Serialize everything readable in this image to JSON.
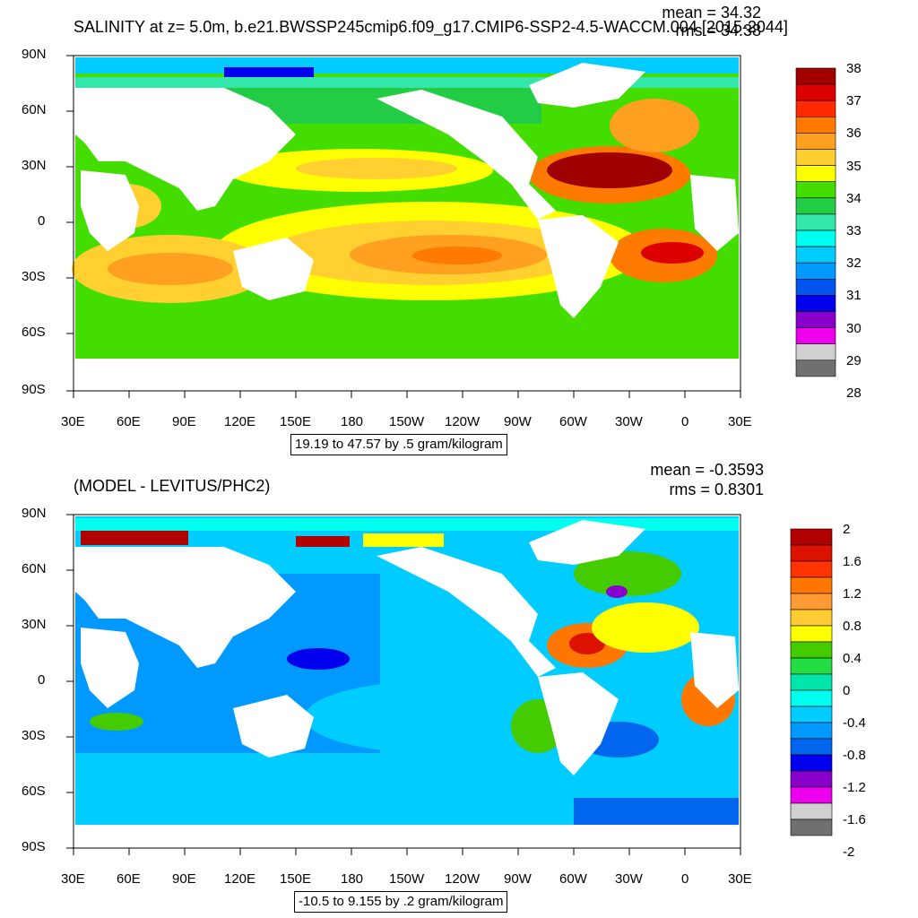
{
  "panels": [
    {
      "title": "SALINITY at z=   5.0m, b.e21.BWSSP245cmip6.f09_g17.CMIP6-SSP2-4.5-WACCM.004 [2015-2044]",
      "mean_label": "mean = 34.32",
      "rms_label": "rms = 34.38",
      "contour_note": "19.19 to 47.57 by .5 gram/kilogram",
      "colorbar": {
        "labels": [
          "38",
          "37",
          "36",
          "35",
          "34",
          "33",
          "32",
          "31",
          "30",
          "29",
          "28"
        ],
        "colors": [
          "#a00000",
          "#dd0000",
          "#ff2a00",
          "#ff7a00",
          "#ffa020",
          "#ffd030",
          "#ffff00",
          "#44dd00",
          "#22cc44",
          "#33e6aa",
          "#00ffee",
          "#00ccff",
          "#0099ff",
          "#0055ee",
          "#0000ee",
          "#8800cc",
          "#ee00ee",
          "#d0d0d0",
          "#707070"
        ]
      }
    },
    {
      "title": "(MODEL - LEVITUS/PHC2)",
      "mean_label": "mean = -0.3593",
      "rms_label": "rms = 0.8301",
      "contour_note": "-10.5 to 9.155 by .2 gram/kilogram",
      "colorbar": {
        "labels": [
          "2",
          "1.6",
          "1.2",
          "0.8",
          "0.4",
          "0",
          "-0.4",
          "-0.8",
          "-1.2",
          "-1.6",
          "-2"
        ],
        "colors": [
          "#b00000",
          "#dd1100",
          "#ff3300",
          "#ff7700",
          "#ff9933",
          "#ffcc33",
          "#ffff00",
          "#44cc00",
          "#22dd44",
          "#00e6aa",
          "#00ffee",
          "#00ccff",
          "#0099ff",
          "#0066ee",
          "#0000ee",
          "#8800cc",
          "#ee00ee",
          "#d0d0d0",
          "#707070"
        ]
      }
    }
  ],
  "axes": {
    "lat_labels": [
      "90N",
      "60N",
      "30N",
      "0",
      "30S",
      "60S",
      "90S"
    ],
    "lon_labels": [
      "30E",
      "60E",
      "90E",
      "120E",
      "150E",
      "180",
      "150W",
      "120W",
      "90W",
      "60W",
      "30W",
      "0",
      "30E"
    ]
  }
}
